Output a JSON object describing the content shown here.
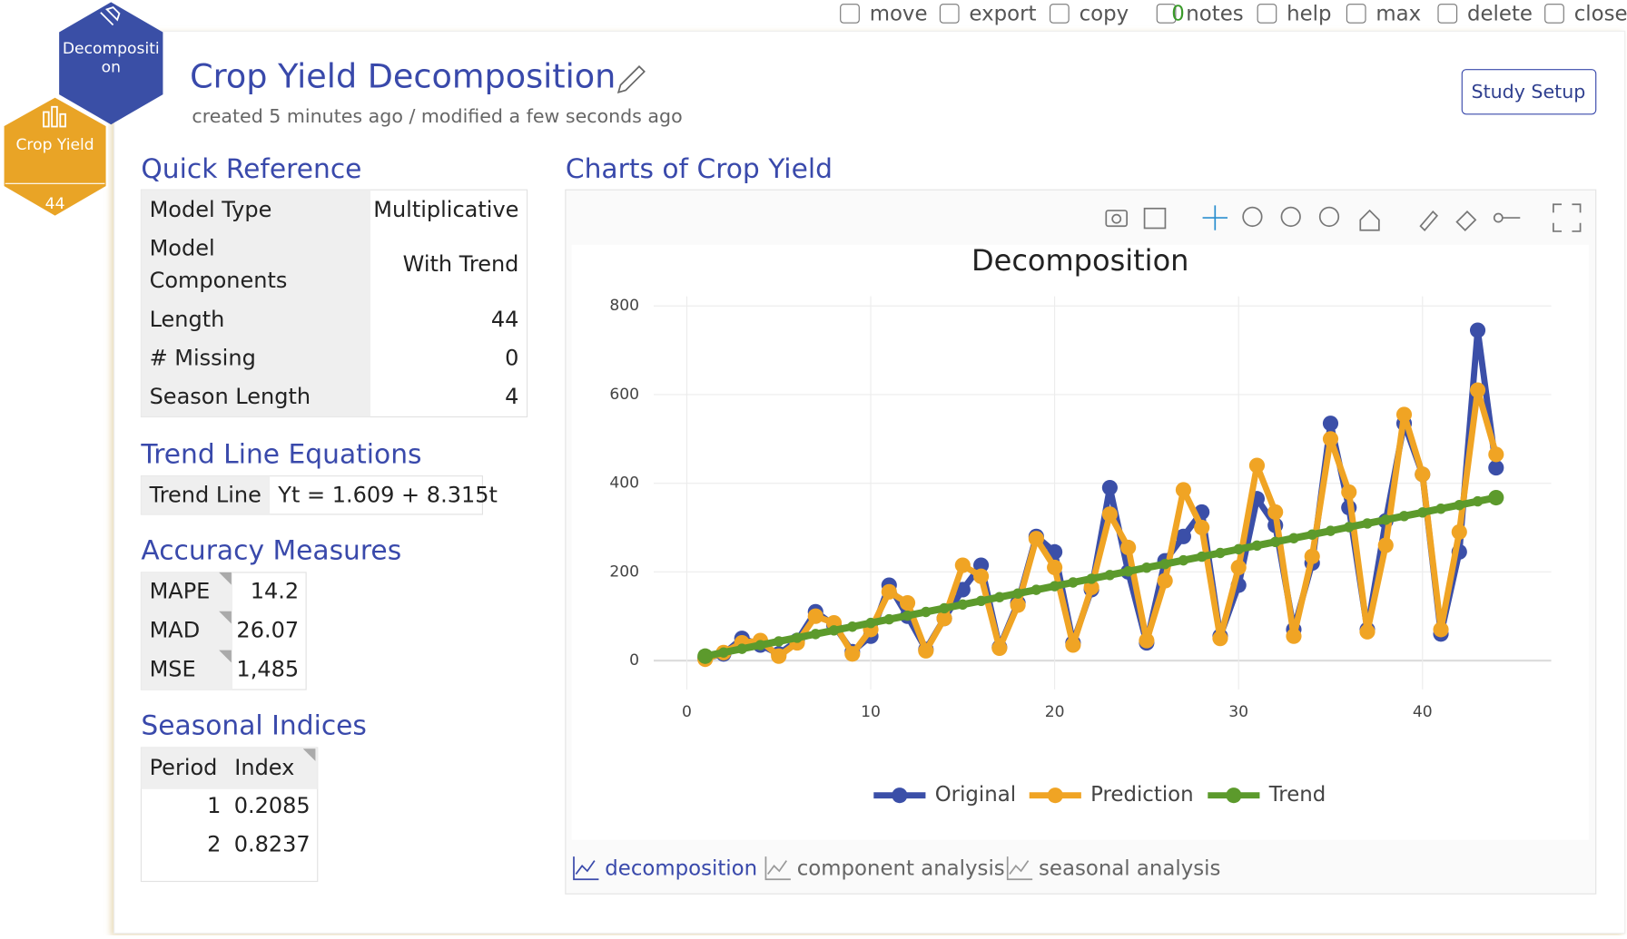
{
  "toolbar": [
    "move",
    "export",
    "copy",
    "notes",
    "help",
    "max",
    "delete",
    "close"
  ],
  "notes_count": 0,
  "badges": {
    "analysis": "Decompositi on",
    "dataset": "Crop Yield",
    "count": 44
  },
  "header": {
    "title": "Crop Yield Decomposition",
    "subtitle": "created 5 minutes ago / modified a few seconds ago",
    "button": "Study Setup"
  },
  "quick_reference": {
    "title": "Quick Reference",
    "rows": [
      [
        "Model Type",
        "Multiplicative"
      ],
      [
        "Model Components",
        "With Trend"
      ],
      [
        "Length",
        44
      ],
      [
        "# Missing",
        0
      ],
      [
        "Season Length",
        4
      ]
    ]
  },
  "trend": {
    "title": "Trend Line Equations",
    "label": "Trend Line",
    "equation": "Yt = 1.609 + 8.315t"
  },
  "accuracy": {
    "title": "Accuracy Measures",
    "rows": [
      [
        "MAPE",
        14.2
      ],
      [
        "MAD",
        26.07
      ],
      [
        "MSE",
        "1,485"
      ]
    ]
  },
  "seasonal": {
    "title": "Seasonal Indices",
    "columns": [
      "Period",
      "Index"
    ],
    "rows": [
      [
        1,
        0.2085
      ],
      [
        2,
        0.8237
      ]
    ]
  },
  "charts_title": "Charts of Crop Yield",
  "tabs": [
    "decomposition",
    "component analysis",
    "seasonal analysis"
  ],
  "chart_data": {
    "type": "line",
    "title": "Decomposition",
    "x": [
      1,
      2,
      3,
      4,
      5,
      6,
      7,
      8,
      9,
      10,
      11,
      12,
      13,
      14,
      15,
      16,
      17,
      18,
      19,
      20,
      21,
      22,
      23,
      24,
      25,
      26,
      27,
      28,
      29,
      30,
      31,
      32,
      33,
      34,
      35,
      36,
      37,
      38,
      39,
      40,
      41,
      42,
      43,
      44
    ],
    "series": [
      {
        "name": "Original",
        "color": "#3b4fa8",
        "values": [
          5,
          15,
          50,
          35,
          15,
          45,
          110,
          80,
          20,
          55,
          170,
          100,
          25,
          95,
          160,
          215,
          30,
          130,
          280,
          245,
          40,
          160,
          390,
          200,
          40,
          225,
          280,
          335,
          55,
          170,
          365,
          305,
          70,
          220,
          535,
          345,
          70,
          315,
          535,
          420,
          60,
          245,
          745,
          435
        ]
      },
      {
        "name": "Prediction",
        "color": "#f0a424",
        "values": [
          3,
          18,
          40,
          45,
          10,
          40,
          100,
          85,
          15,
          70,
          155,
          130,
          22,
          95,
          215,
          190,
          28,
          125,
          275,
          210,
          35,
          165,
          330,
          255,
          45,
          180,
          385,
          300,
          50,
          210,
          440,
          335,
          55,
          235,
          500,
          380,
          65,
          260,
          555,
          420,
          70,
          290,
          610,
          465
        ]
      },
      {
        "name": "Trend",
        "color": "#5c9a2c",
        "values": [
          9.9,
          18.2,
          26.5,
          34.9,
          43.2,
          51.5,
          59.8,
          68.1,
          76.4,
          84.8,
          93.1,
          101.4,
          109.7,
          118,
          126.3,
          134.6,
          143,
          151.3,
          159.6,
          167.9,
          176.2,
          184.5,
          192.9,
          201.2,
          209.5,
          217.8,
          226.1,
          234.4,
          242.7,
          251.1,
          259.4,
          267.7,
          276,
          284.3,
          292.6,
          301,
          309.3,
          317.6,
          325.9,
          334.2,
          342.5,
          350.8,
          359.2,
          367.5
        ]
      }
    ],
    "xlim": [
      -1.8,
      47
    ],
    "ylim": [
      -65,
      810
    ],
    "xticks": [
      0,
      10,
      20,
      30,
      40
    ],
    "yticks": [
      0,
      200,
      400,
      600,
      800
    ],
    "grid": true,
    "legend": "bottom"
  }
}
